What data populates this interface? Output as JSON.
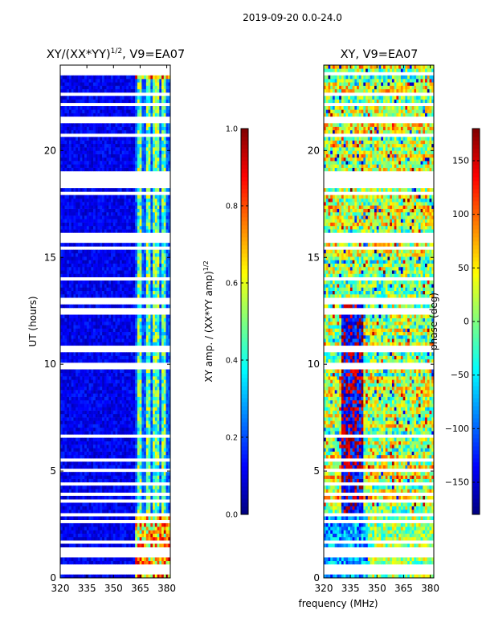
{
  "suptitle": "2019-09-20 0.0-24.0",
  "colors": {
    "jet": [
      "#00007f",
      "#0000ff",
      "#007fff",
      "#00ffff",
      "#7fff7f",
      "#ffff00",
      "#ff7f00",
      "#ff0000",
      "#7f0000"
    ],
    "gap": "#ffffff",
    "axis": "#000000"
  },
  "chart_data": [
    {
      "type": "heatmap",
      "title_main": "XY/(XX*YY)",
      "title_exp": "1/2",
      "title_suffix": ", V9=EA07",
      "xlabel": "",
      "ylabel": "UT (hours)",
      "xlim": [
        320,
        382
      ],
      "ylim": [
        0,
        24
      ],
      "xticks": [
        320,
        335,
        350,
        365,
        380
      ],
      "yticks": [
        0,
        5,
        10,
        15,
        20
      ],
      "colorbar": {
        "label_main": "XY amp. / (XX*YY amp)",
        "label_exp": "1/2",
        "vmin": 0.0,
        "vmax": 1.0,
        "ticks": [
          0.0,
          0.2,
          0.4,
          0.6,
          0.8,
          1.0
        ],
        "tick_labels": [
          "0.0",
          "0.2",
          "0.4",
          "0.6",
          "0.8",
          "1.0"
        ]
      },
      "bright_channels_mhz": [
        [
          363,
          366
        ],
        [
          368,
          371
        ],
        [
          372,
          376
        ],
        [
          377,
          380
        ]
      ],
      "data_gaps_ut": [
        [
          0.2,
          0.45
        ],
        [
          1.0,
          1.1
        ],
        [
          1.1,
          1.5
        ],
        [
          2.9,
          3.1
        ],
        [
          12.95,
          13.05
        ],
        [
          18.6,
          19.1
        ],
        [
          23.5,
          24.0
        ]
      ]
    },
    {
      "type": "heatmap",
      "title": "XY, V9=EA07",
      "xlabel": "frequency (MHz)",
      "ylabel": "",
      "xlim": [
        320,
        382
      ],
      "ylim": [
        0,
        24
      ],
      "xticks": [
        320,
        335,
        350,
        365,
        380
      ],
      "yticks": [
        0,
        5,
        10,
        15,
        20
      ],
      "colorbar": {
        "label": "phase (deg)",
        "vmin": -180,
        "vmax": 180,
        "ticks": [
          -150,
          -100,
          -50,
          0,
          50,
          100,
          150
        ],
        "tick_labels": [
          "−150",
          "−100",
          "−50",
          "0",
          "50",
          "100",
          "150"
        ]
      },
      "data_gaps_ut": [
        [
          0.2,
          0.45
        ],
        [
          1.0,
          1.1
        ],
        [
          1.1,
          1.5
        ],
        [
          2.9,
          3.1
        ],
        [
          12.95,
          13.05
        ],
        [
          18.6,
          19.1
        ]
      ]
    }
  ]
}
